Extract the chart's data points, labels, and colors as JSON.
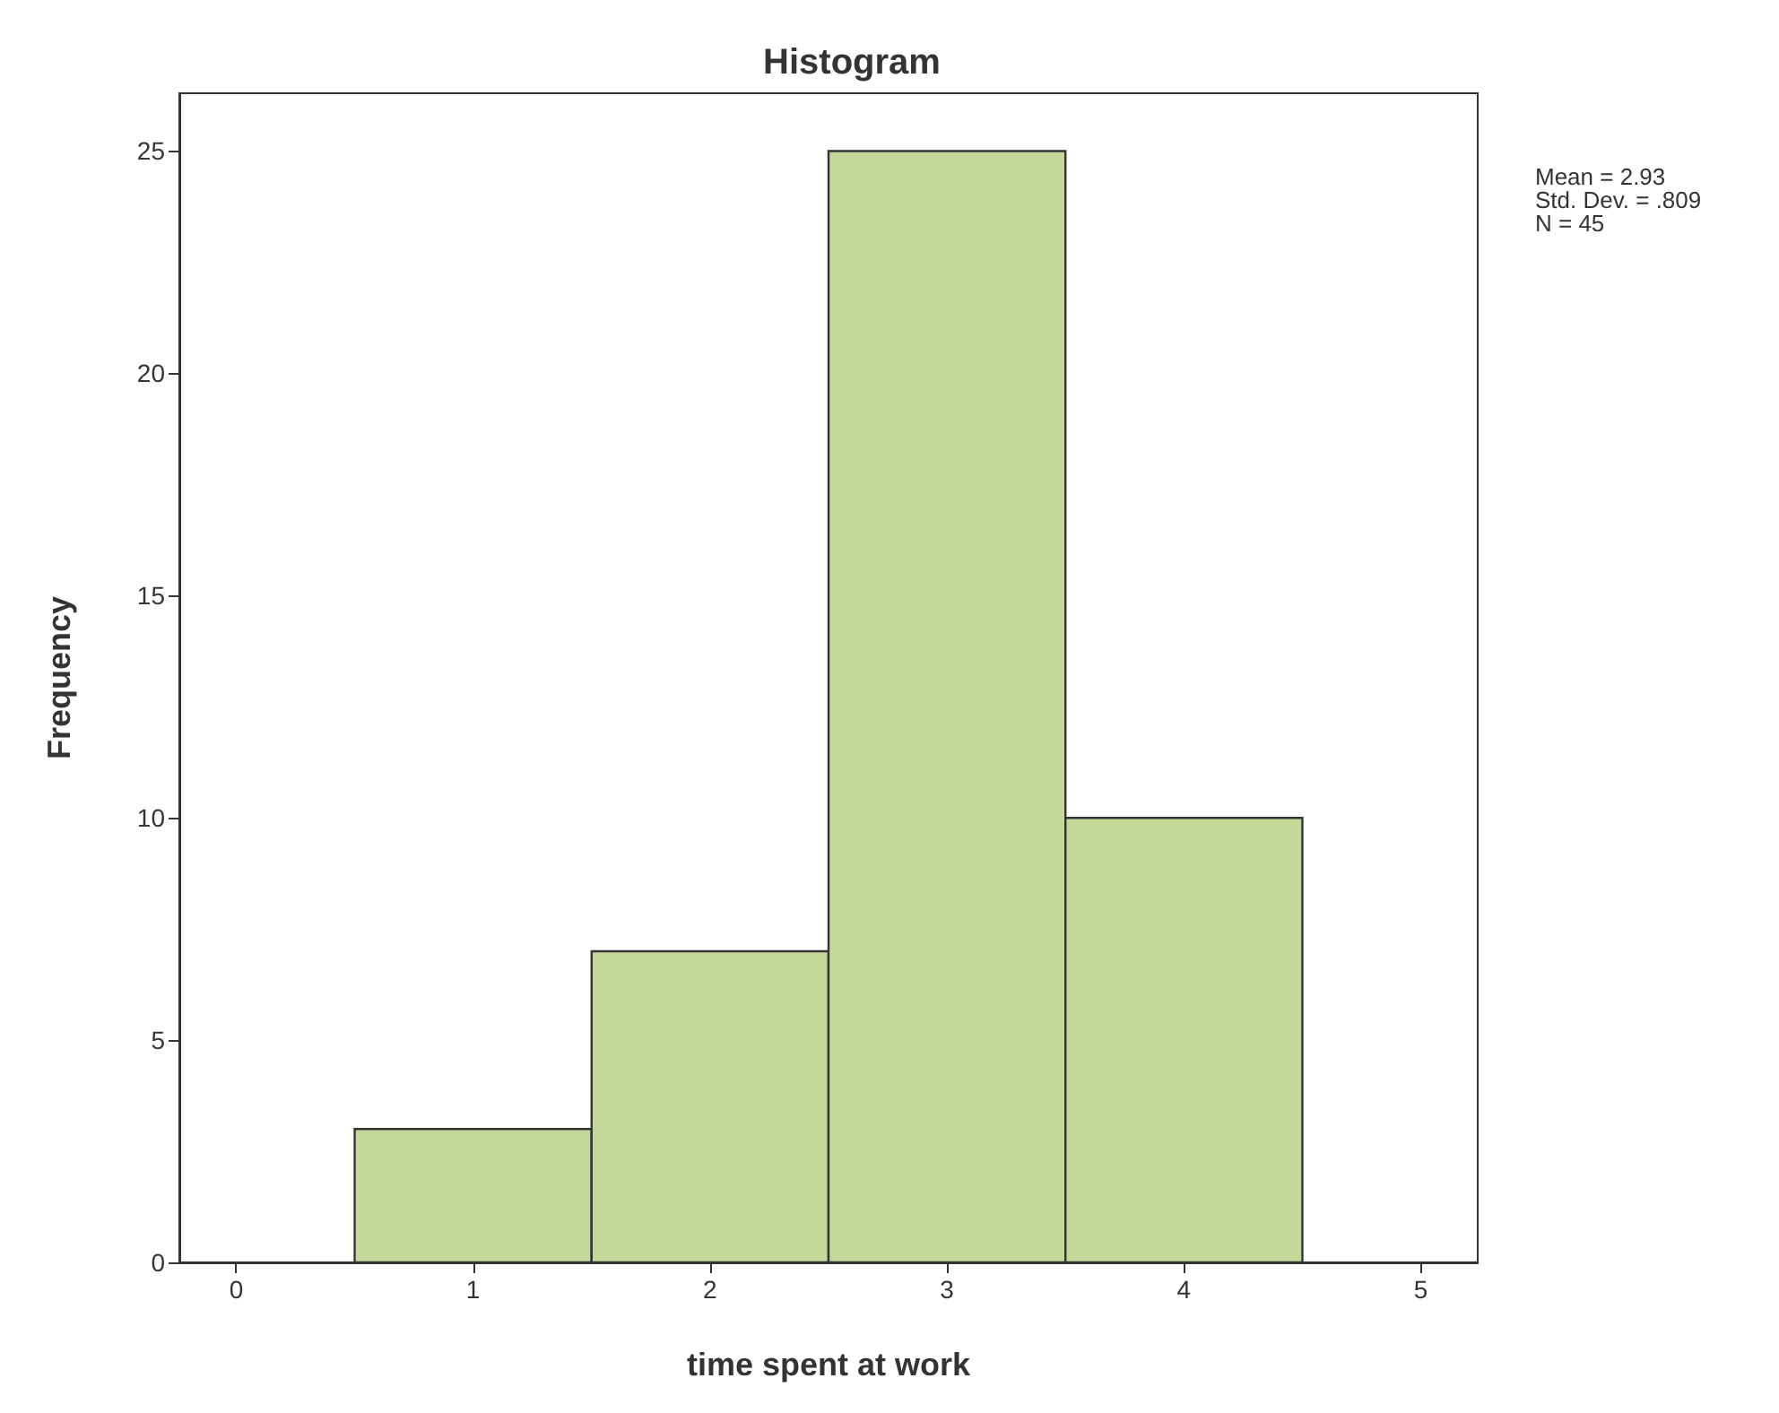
{
  "chart_data": {
    "type": "histogram",
    "title": "Histogram",
    "xlabel": "time spent at work",
    "ylabel": "Frequency",
    "bins": [
      0.5,
      1.5,
      2.5,
      3.5,
      4.5
    ],
    "values": [
      3,
      7,
      25,
      10
    ],
    "color": "#c5d89a",
    "xlim": [
      -0.24,
      5.24
    ],
    "xticks": [
      0,
      1,
      2,
      3,
      4,
      5
    ],
    "ylim": [
      0,
      26.3
    ],
    "yticks": [
      0,
      5,
      10,
      15,
      20,
      25
    ],
    "grid": false,
    "annotations": [
      "Mean = 2.93",
      "Std. Dev. = .809",
      "N = 45"
    ]
  }
}
